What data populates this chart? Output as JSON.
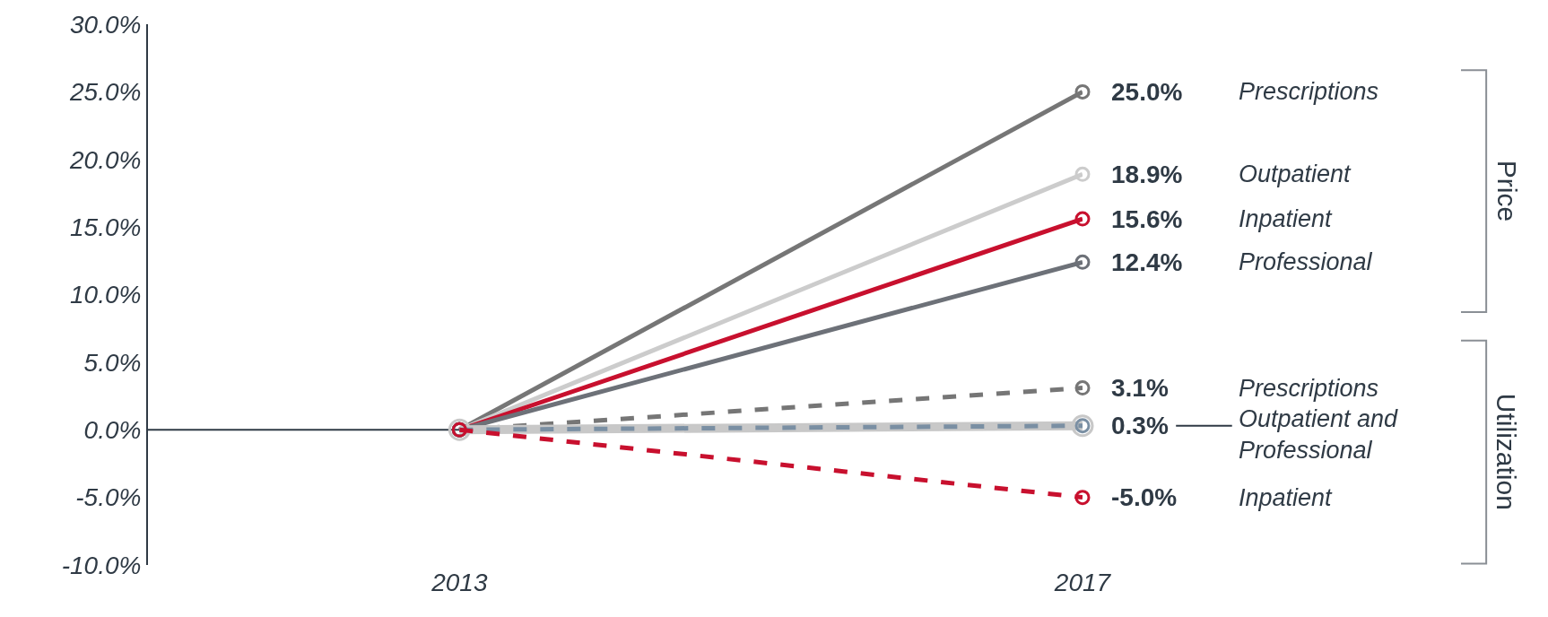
{
  "chart_data": {
    "type": "line",
    "categories": [
      "2013",
      "2017"
    ],
    "ylim": [
      -10,
      30
    ],
    "yticks": [
      {
        "value": -10,
        "label": "-10.0%"
      },
      {
        "value": -5,
        "label": "-5.0%"
      },
      {
        "value": 0,
        "label": "0.0%"
      },
      {
        "value": 5,
        "label": "5.0%"
      },
      {
        "value": 10,
        "label": "10.0%"
      },
      {
        "value": 15,
        "label": "15.0%"
      },
      {
        "value": 20,
        "label": "20.0%"
      },
      {
        "value": 25,
        "label": "25.0%"
      },
      {
        "value": 30,
        "label": "30.0%"
      }
    ],
    "grid": false,
    "ref_lines": [
      {
        "axis": "y",
        "value": 0,
        "color": "#2f3a45"
      }
    ],
    "legend": false,
    "marker": "circle",
    "line_style": "solid",
    "series": [
      {
        "name": "Prescriptions",
        "color": "#767676",
        "values": [
          0,
          25.0
        ],
        "value_labels": [
          null,
          "25.0%"
        ]
      },
      {
        "name": "Outpatient",
        "color": "#cccccc",
        "values": [
          0,
          18.9
        ],
        "value_labels": [
          null,
          "18.9%"
        ]
      },
      {
        "name": "Inpatient",
        "color": "#c8102e",
        "values": [
          0,
          15.6
        ],
        "value_labels": [
          null,
          "15.6%"
        ]
      },
      {
        "name": "Professional",
        "color": "#6d7178",
        "values": [
          0,
          12.4
        ],
        "value_labels": [
          null,
          "12.4%"
        ]
      },
      {
        "name": "Prescriptions",
        "color": "#767676",
        "line_style": "dashed",
        "values": [
          0,
          3.1
        ],
        "value_labels": [
          null,
          "3.1%"
        ]
      },
      {
        "color": "#c8c8c8",
        "values": [
          0,
          0.3
        ]
      },
      {
        "name": "Outpatient and Professional",
        "color": "#7a8fa3",
        "line_style": "dashed",
        "values": [
          0,
          0.3
        ],
        "value_labels": [
          null,
          "0.3%"
        ]
      },
      {
        "name": "Inpatient",
        "color": "#c8102e",
        "line_style": "dashed",
        "values": [
          0,
          -5.0
        ],
        "value_labels": [
          null,
          "-5.0%"
        ]
      }
    ],
    "annotations": [
      "Price",
      "Utilization"
    ]
  }
}
